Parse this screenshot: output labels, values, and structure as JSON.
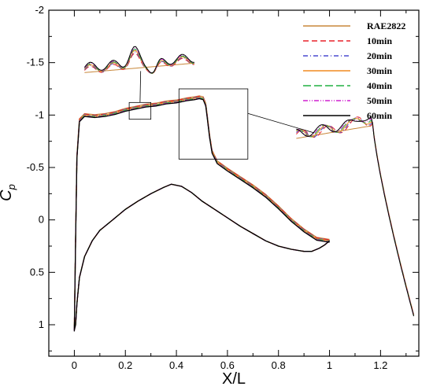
{
  "chart_data": {
    "type": "line",
    "xlabel": "X/L",
    "ylabel": "C",
    "ylabel_sub": "p",
    "xlim": [
      -0.1,
      1.35
    ],
    "ylim": [
      -2,
      1.3
    ],
    "y_reversed": true,
    "grid": false,
    "legend_position": "top-right",
    "xticks": [
      "0",
      "0.2",
      "0.4",
      "0.6",
      "0.8",
      "1",
      "1.2"
    ],
    "xtick_values": [
      0,
      0.2,
      0.4,
      0.6,
      0.8,
      1.0,
      1.2
    ],
    "yticks": [
      "-2",
      "-1.5",
      "-1",
      "-0.5",
      "0",
      "0.5",
      "1"
    ],
    "ytick_values": [
      -2,
      -1.5,
      -1,
      -0.5,
      0,
      0.5,
      1
    ],
    "series": [
      {
        "name": "RAE2822",
        "color": "#c8873a",
        "dash": "solid"
      },
      {
        "name": "10min",
        "color": "#e8202a",
        "dash": "dashed"
      },
      {
        "name": "20min",
        "color": "#4a4ad0",
        "dash": "dashdot"
      },
      {
        "name": "30min",
        "color": "#f08a20",
        "dash": "solid"
      },
      {
        "name": "40min",
        "color": "#20b040",
        "dash": "longdash"
      },
      {
        "name": "50min",
        "color": "#d020d0",
        "dash": "dashdotdot"
      },
      {
        "name": "60min",
        "color": "#000000",
        "dash": "solid"
      }
    ],
    "upper_surface": {
      "x": [
        0.0,
        0.005,
        0.01,
        0.02,
        0.04,
        0.08,
        0.12,
        0.16,
        0.2,
        0.24,
        0.28,
        0.32,
        0.36,
        0.4,
        0.44,
        0.47,
        0.49,
        0.505,
        0.515,
        0.52,
        0.53,
        0.54,
        0.56,
        0.6,
        0.65,
        0.7,
        0.75,
        0.8,
        0.85,
        0.9,
        0.95,
        1.0
      ],
      "y": [
        1.05,
        0.2,
        -0.6,
        -0.95,
        -1.0,
        -0.99,
        -1.0,
        -1.02,
        -1.05,
        -1.07,
        -1.09,
        -1.1,
        -1.12,
        -1.13,
        -1.15,
        -1.16,
        -1.17,
        -1.16,
        -1.1,
        -1.0,
        -0.8,
        -0.65,
        -0.55,
        -0.48,
        -0.4,
        -0.32,
        -0.23,
        -0.12,
        -0.0,
        0.1,
        0.18,
        0.2
      ]
    },
    "lower_surface": {
      "x": [
        0.0,
        0.005,
        0.01,
        0.02,
        0.04,
        0.07,
        0.1,
        0.15,
        0.2,
        0.25,
        0.3,
        0.35,
        0.38,
        0.42,
        0.46,
        0.5,
        0.55,
        0.6,
        0.65,
        0.7,
        0.75,
        0.8,
        0.85,
        0.9,
        0.93,
        0.96,
        0.98,
        1.0
      ],
      "y": [
        1.05,
        1.0,
        0.8,
        0.55,
        0.35,
        0.2,
        0.1,
        0.0,
        -0.1,
        -0.18,
        -0.25,
        -0.31,
        -0.34,
        -0.32,
        -0.26,
        -0.18,
        -0.1,
        -0.02,
        0.06,
        0.13,
        0.2,
        0.25,
        0.28,
        0.3,
        0.3,
        0.27,
        0.24,
        0.2
      ]
    },
    "legend": [
      "RAE2822",
      "10min",
      "20min",
      "30min",
      "40min",
      "50min",
      "60min"
    ]
  }
}
